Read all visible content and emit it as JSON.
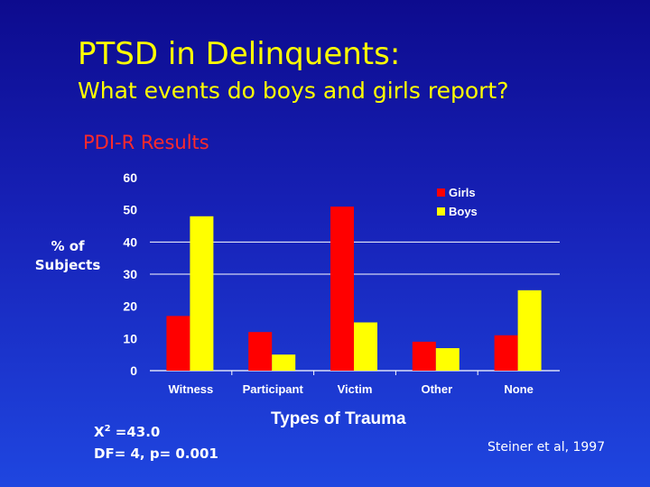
{
  "slide": {
    "title": "PTSD in Delinquents:",
    "subtitle": "What events do boys and girls report?",
    "section_label": "PDI-R Results",
    "stats_prefix": "X",
    "stats_sup": "2",
    "stats_line1_rest": " =43.0",
    "stats_line2": "DF= 4, p= 0.001",
    "citation": "Steiner et al,  1997"
  },
  "chart_data": {
    "type": "bar",
    "ylabel_line1": "% of",
    "ylabel_line2": "Subjects",
    "xlabel": "Types of Trauma",
    "categories": [
      "Witness",
      "Participant",
      "Victim",
      "Other",
      "None"
    ],
    "series": [
      {
        "name": "Girls",
        "color": "#ff0000",
        "values": [
          17,
          12,
          51,
          9,
          11
        ]
      },
      {
        "name": "Boys",
        "color": "#ffff00",
        "values": [
          48,
          5,
          15,
          7,
          25
        ]
      }
    ],
    "ylim": [
      0,
      60
    ],
    "yticks": [
      0,
      10,
      20,
      30,
      40,
      50,
      60
    ],
    "gridlines": [
      30,
      40
    ],
    "grid": true,
    "legend": "top-right"
  }
}
